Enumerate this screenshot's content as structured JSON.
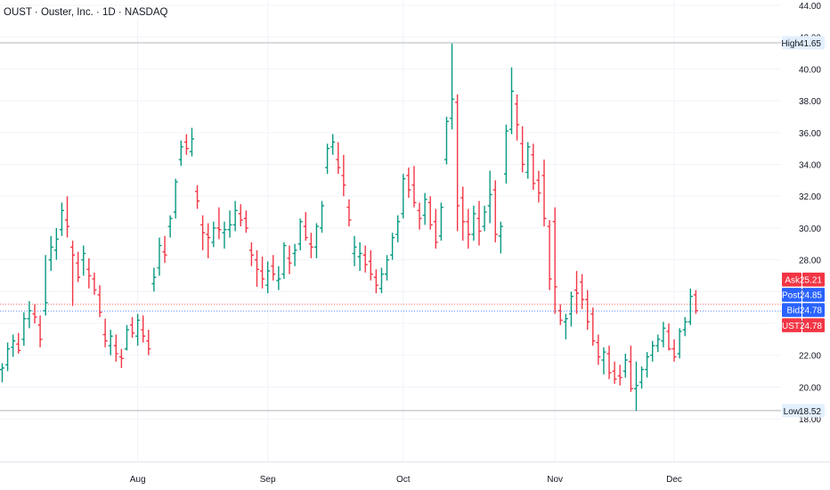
{
  "header": {
    "title": "OUST · Ouster, Inc. · 1D · NASDAQ"
  },
  "colors": {
    "up": "#089981",
    "down": "#f23645",
    "grid": "#f0f3fa",
    "axis_text": "#131722",
    "ask": "#f23645",
    "post": "#2962ff",
    "bid": "#2962ff",
    "last": "#f23645",
    "hl_line": "#b2b5be",
    "hl_label_bg": "#e3effd"
  },
  "chart_data": {
    "type": "ohlc",
    "symbol": "OUST",
    "interval": "1D",
    "ylim": [
      17.0,
      44.0
    ],
    "y_ticks": [
      "18.00",
      "20.00",
      "22.00",
      "24.00",
      "26.00",
      "28.00",
      "30.00",
      "32.00",
      "34.00",
      "36.00",
      "38.00",
      "40.00",
      "42.00",
      "44.00"
    ],
    "x_labels": [
      {
        "label": "Aug",
        "index": 25
      },
      {
        "label": "Sep",
        "index": 49
      },
      {
        "label": "Oct",
        "index": 74
      },
      {
        "label": "Nov",
        "index": 102
      },
      {
        "label": "Dec",
        "index": 124
      }
    ],
    "bars": [
      [
        21.1,
        21.5,
        20.3,
        21.2
      ],
      [
        21.4,
        22.8,
        21.0,
        22.4
      ],
      [
        22.5,
        23.3,
        21.9,
        22.9
      ],
      [
        22.7,
        23.4,
        22.1,
        22.3
      ],
      [
        23.0,
        24.7,
        22.6,
        24.3
      ],
      [
        24.3,
        25.4,
        23.7,
        24.8
      ],
      [
        24.6,
        25.2,
        24.0,
        24.4
      ],
      [
        23.9,
        24.5,
        22.5,
        23.0
      ],
      [
        24.8,
        28.3,
        24.5,
        25.3
      ],
      [
        28.0,
        29.5,
        27.3,
        28.8
      ],
      [
        28.6,
        30.0,
        28.0,
        29.3
      ],
      [
        29.9,
        31.6,
        29.5,
        31.1
      ],
      [
        30.5,
        32.0,
        29.4,
        30.1
      ],
      [
        28.8,
        29.2,
        25.1,
        28.3
      ],
      [
        27.8,
        28.5,
        26.6,
        26.9
      ],
      [
        28.0,
        28.9,
        27.0,
        28.4
      ],
      [
        27.4,
        28.1,
        26.2,
        27.0
      ],
      [
        26.8,
        27.2,
        25.8,
        26.1
      ],
      [
        25.8,
        26.4,
        24.4,
        24.7
      ],
      [
        23.3,
        24.3,
        22.5,
        22.9
      ],
      [
        22.6,
        23.6,
        22.0,
        23.2
      ],
      [
        22.6,
        23.3,
        21.6,
        22.1
      ],
      [
        21.9,
        22.4,
        21.2,
        21.8
      ],
      [
        22.4,
        23.9,
        22.3,
        23.6
      ],
      [
        23.9,
        24.4,
        23.1,
        23.4
      ],
      [
        23.2,
        24.6,
        22.6,
        24.2
      ],
      [
        23.6,
        24.5,
        22.8,
        23.2
      ],
      [
        22.9,
        23.6,
        22.0,
        22.4
      ],
      [
        26.5,
        27.5,
        26.0,
        26.9
      ],
      [
        27.5,
        29.4,
        27.0,
        28.9
      ],
      [
        28.5,
        29.5,
        27.8,
        28.3
      ],
      [
        30.1,
        30.8,
        29.4,
        30.6
      ],
      [
        31.0,
        33.1,
        30.6,
        32.9
      ],
      [
        34.3,
        35.5,
        33.9,
        35.1
      ],
      [
        35.4,
        35.9,
        34.6,
        35.0
      ],
      [
        34.8,
        36.3,
        34.5,
        35.6
      ],
      [
        32.3,
        32.7,
        31.2,
        31.7
      ],
      [
        30.2,
        30.8,
        28.6,
        29.7
      ],
      [
        29.6,
        30.3,
        28.1,
        29.4
      ],
      [
        29.1,
        30.4,
        28.8,
        30.0
      ],
      [
        30.0,
        31.3,
        29.3,
        29.9
      ],
      [
        29.7,
        30.4,
        28.7,
        29.9
      ],
      [
        29.9,
        31.1,
        29.4,
        30.2
      ],
      [
        30.2,
        31.7,
        29.8,
        31.1
      ],
      [
        30.9,
        31.5,
        30.1,
        30.5
      ],
      [
        30.6,
        31.1,
        29.7,
        30.0
      ],
      [
        28.6,
        29.1,
        27.6,
        28.3
      ],
      [
        28.0,
        28.6,
        26.3,
        27.4
      ],
      [
        27.3,
        28.2,
        26.2,
        26.8
      ],
      [
        26.4,
        27.9,
        25.9,
        27.3
      ],
      [
        27.6,
        28.3,
        26.7,
        27.1
      ],
      [
        26.7,
        27.6,
        26.1,
        26.8
      ],
      [
        27.1,
        29.1,
        26.8,
        28.9
      ],
      [
        28.1,
        28.9,
        27.1,
        27.8
      ],
      [
        28.4,
        29.0,
        27.6,
        28.6
      ],
      [
        29.0,
        30.6,
        28.6,
        30.4
      ],
      [
        30.1,
        31.0,
        29.2,
        29.4
      ],
      [
        29.0,
        29.7,
        28.1,
        28.8
      ],
      [
        28.8,
        30.3,
        28.1,
        30.1
      ],
      [
        30.0,
        31.7,
        29.7,
        31.4
      ],
      [
        33.8,
        35.3,
        33.4,
        35.0
      ],
      [
        35.1,
        35.9,
        34.6,
        35.4
      ],
      [
        34.3,
        35.4,
        33.4,
        33.8
      ],
      [
        33.3,
        34.6,
        32.0,
        32.7
      ],
      [
        31.3,
        31.8,
        30.1,
        30.5
      ],
      [
        28.4,
        29.5,
        27.6,
        28.8
      ],
      [
        28.2,
        29.1,
        27.3,
        28.4
      ],
      [
        28.3,
        28.9,
        27.2,
        27.7
      ],
      [
        27.9,
        28.6,
        26.7,
        27.1
      ],
      [
        26.9,
        27.4,
        25.9,
        26.4
      ],
      [
        26.2,
        27.5,
        25.9,
        27.1
      ],
      [
        27.1,
        28.3,
        26.7,
        28.0
      ],
      [
        28.3,
        29.7,
        28.0,
        29.4
      ],
      [
        29.6,
        30.8,
        29.1,
        30.4
      ],
      [
        30.9,
        33.4,
        30.6,
        33.1
      ],
      [
        33.3,
        33.8,
        31.9,
        32.4
      ],
      [
        32.7,
        33.9,
        31.3,
        31.6
      ],
      [
        31.1,
        31.6,
        29.9,
        30.6
      ],
      [
        30.8,
        32.2,
        30.2,
        31.8
      ],
      [
        31.6,
        32.0,
        29.9,
        30.2
      ],
      [
        30.4,
        31.2,
        28.7,
        29.1
      ],
      [
        29.5,
        31.6,
        29.2,
        31.3
      ],
      [
        34.3,
        37.0,
        34.0,
        36.7
      ],
      [
        36.9,
        41.6,
        36.2,
        38.1
      ],
      [
        37.9,
        38.4,
        29.8,
        31.4
      ],
      [
        31.9,
        32.6,
        29.2,
        30.4
      ],
      [
        30.4,
        31.2,
        28.7,
        29.6
      ],
      [
        29.6,
        31.4,
        29.2,
        30.9
      ],
      [
        30.6,
        31.7,
        28.9,
        29.8
      ],
      [
        30.1,
        31.4,
        29.8,
        31.0
      ],
      [
        31.4,
        33.6,
        30.3,
        32.1
      ],
      [
        32.4,
        33.0,
        29.1,
        29.6
      ],
      [
        29.5,
        30.4,
        28.4,
        30.1
      ],
      [
        33.4,
        36.5,
        32.8,
        36.1
      ],
      [
        36.2,
        40.1,
        35.9,
        38.6
      ],
      [
        37.8,
        38.4,
        35.5,
        36.5
      ],
      [
        35.3,
        36.4,
        33.5,
        34.0
      ],
      [
        33.5,
        35.4,
        33.1,
        35.1
      ],
      [
        34.6,
        35.3,
        32.4,
        32.8
      ],
      [
        33.0,
        33.6,
        31.6,
        32.2
      ],
      [
        33.3,
        34.3,
        30.1,
        30.6
      ],
      [
        30.1,
        30.5,
        26.1,
        26.8
      ],
      [
        30.4,
        31.3,
        24.6,
        26.3
      ],
      [
        24.8,
        25.2,
        23.9,
        24.2
      ],
      [
        24.1,
        24.6,
        23.0,
        24.3
      ],
      [
        24.6,
        26.0,
        23.8,
        25.7
      ],
      [
        26.1,
        27.3,
        24.6,
        25.9
      ],
      [
        26.6,
        27.1,
        24.9,
        25.5
      ],
      [
        25.5,
        26.1,
        23.6,
        24.1
      ],
      [
        24.6,
        25.0,
        22.6,
        22.9
      ],
      [
        22.8,
        23.3,
        21.4,
        21.9
      ],
      [
        21.7,
        22.5,
        20.8,
        22.2
      ],
      [
        22.1,
        22.6,
        20.5,
        20.9
      ],
      [
        21.0,
        21.6,
        20.2,
        20.5
      ],
      [
        20.7,
        21.4,
        20.1,
        20.6
      ],
      [
        21.0,
        22.1,
        20.6,
        21.7
      ],
      [
        21.6,
        22.6,
        19.7,
        19.9
      ],
      [
        19.9,
        21.6,
        18.5,
        20.1
      ],
      [
        20.3,
        21.3,
        19.9,
        21.1
      ],
      [
        21.1,
        22.2,
        20.6,
        21.9
      ],
      [
        22.0,
        22.9,
        21.6,
        22.6
      ],
      [
        22.6,
        23.3,
        22.2,
        23.0
      ],
      [
        22.9,
        24.1,
        22.5,
        23.7
      ],
      [
        23.5,
        24.0,
        22.3,
        22.4
      ],
      [
        22.4,
        23.0,
        21.6,
        21.9
      ],
      [
        22.1,
        23.7,
        21.8,
        23.5
      ],
      [
        23.6,
        24.4,
        23.2,
        24.1
      ],
      [
        24.1,
        26.2,
        23.9,
        25.7
      ],
      [
        25.8,
        26.1,
        24.6,
        24.8
      ]
    ],
    "price_labels": [
      {
        "name": "Ask",
        "value": "25.21",
        "price": 25.21
      },
      {
        "name": "Post",
        "value": "24.85",
        "price": 24.85
      },
      {
        "name": "Bid",
        "value": "24.78",
        "price": 24.78
      },
      {
        "name": "OUST",
        "value": "24.78",
        "price": 24.78
      }
    ],
    "high": {
      "label": "High",
      "value": "41.65",
      "price": 41.65
    },
    "low": {
      "label": "Low",
      "value": "18.52",
      "price": 18.52
    }
  }
}
